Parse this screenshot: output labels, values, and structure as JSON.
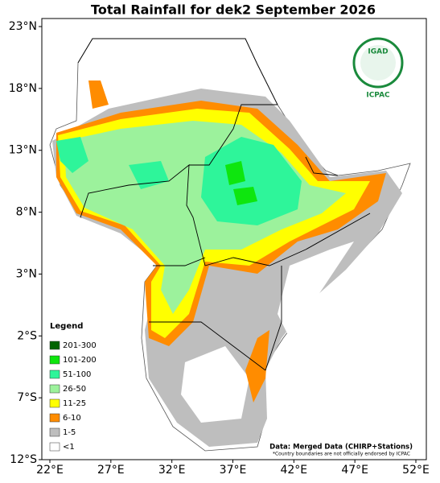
{
  "title": "Total Rainfall for dek2 September 2026",
  "x_labels": [
    "22°E",
    "27°E",
    "32°E",
    "37°E",
    "42°E",
    "47°E",
    "52°E"
  ],
  "y_labels": [
    "23°N",
    "18°N",
    "13°N",
    "8°N",
    "3°N",
    "2°S",
    "7°S",
    "12°S"
  ],
  "legend": {
    "title": "Legend",
    "items": [
      {
        "label": "201-300",
        "color": "#006400"
      },
      {
        "label": "101-200",
        "color": "#0ee60e"
      },
      {
        "label": "51-100",
        "color": "#2ef59a"
      },
      {
        "label": "26-50",
        "color": "#9cf29c"
      },
      {
        "label": "11-25",
        "color": "#ffff00"
      },
      {
        "label": "6-10",
        "color": "#ff8c00"
      },
      {
        "label": "1-5",
        "color": "#bebebe"
      },
      {
        "label": "<1",
        "color": "#ffffff"
      }
    ]
  },
  "logo": {
    "name": "IGAD",
    "center": "ICPAC"
  },
  "source_note": "Data: Merged Data (CHIRP+Stations)",
  "disclaimer": "*Country boundaries are not officially endorsed by ICPAC"
}
